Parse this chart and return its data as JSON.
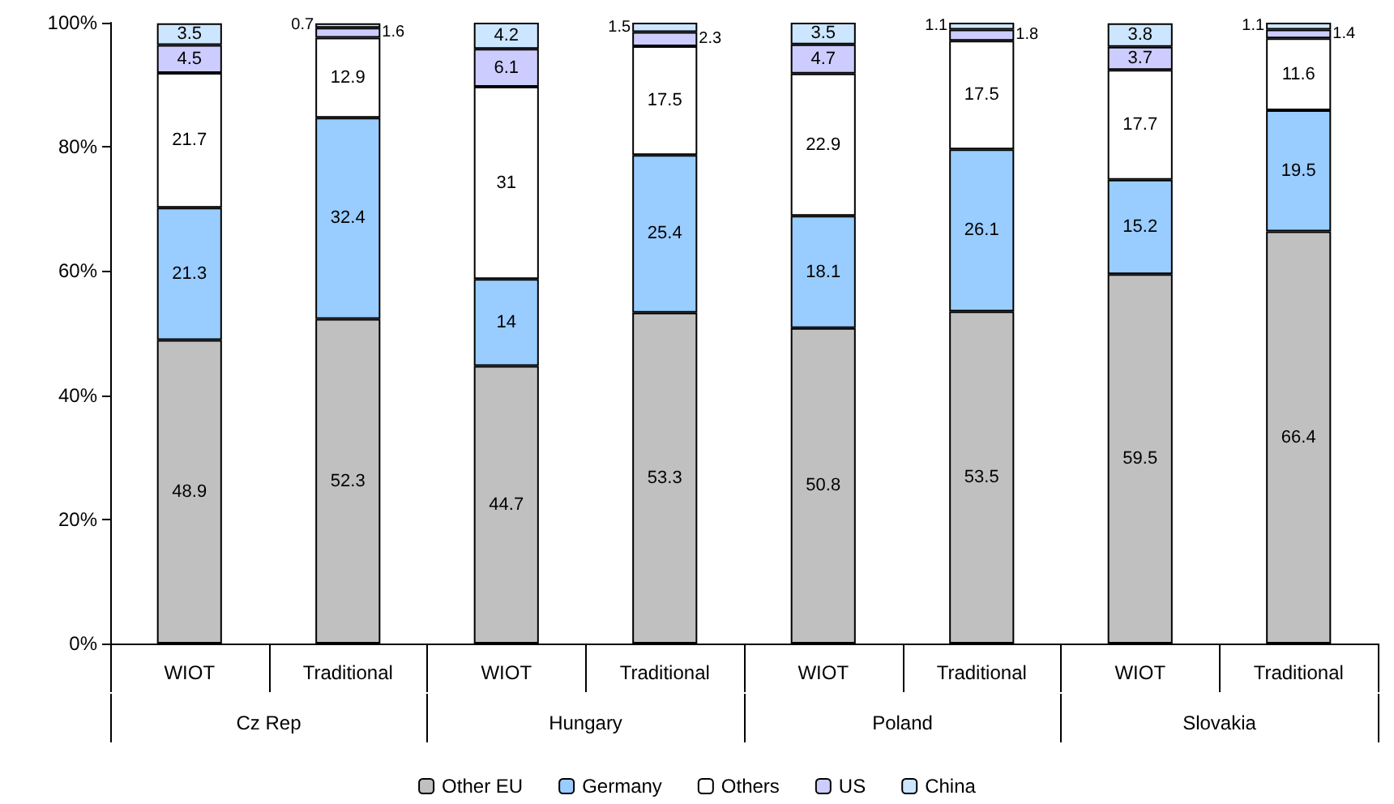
{
  "chart_data": {
    "type": "bar",
    "stacked": true,
    "data_labels": true,
    "legend": "bottom",
    "grid": false,
    "categories": [
      "WIOT",
      "Traditional",
      "WIOT",
      "Traditional",
      "WIOT",
      "Traditional",
      "WIOT",
      "Traditional"
    ],
    "annotations": [
      "Cz Rep",
      "Hungary",
      "Poland",
      "Slovakia"
    ],
    "series": [
      {
        "name": "Other EU",
        "color": "#c0c0c0",
        "values": [
          48.9,
          52.3,
          44.7,
          53.3,
          50.8,
          53.5,
          59.5,
          66.4
        ]
      },
      {
        "name": "Germany",
        "color": "#99ccff",
        "values": [
          21.3,
          32.4,
          14,
          25.4,
          18.1,
          26.1,
          15.2,
          19.5
        ]
      },
      {
        "name": "Others",
        "color": "#ffffff",
        "values": [
          21.7,
          12.9,
          31,
          17.5,
          22.9,
          17.5,
          17.7,
          11.6
        ]
      },
      {
        "name": "US",
        "color": "#ccccff",
        "values": [
          4.5,
          1.6,
          6.1,
          2.3,
          4.7,
          1.8,
          3.7,
          1.4
        ]
      },
      {
        "name": "China",
        "color": "#cce6ff",
        "values": [
          3.5,
          0.7,
          4.2,
          1.5,
          3.5,
          1.1,
          3.8,
          1.1
        ]
      }
    ],
    "ylim": [
      0,
      100
    ],
    "yticks": [
      {
        "value": 0,
        "label": "0%"
      },
      {
        "value": 20,
        "label": "20%"
      },
      {
        "value": 40,
        "label": "40%"
      },
      {
        "value": 60,
        "label": "60%"
      },
      {
        "value": 80,
        "label": "80%"
      },
      {
        "value": 100,
        "label": "100%"
      }
    ]
  }
}
